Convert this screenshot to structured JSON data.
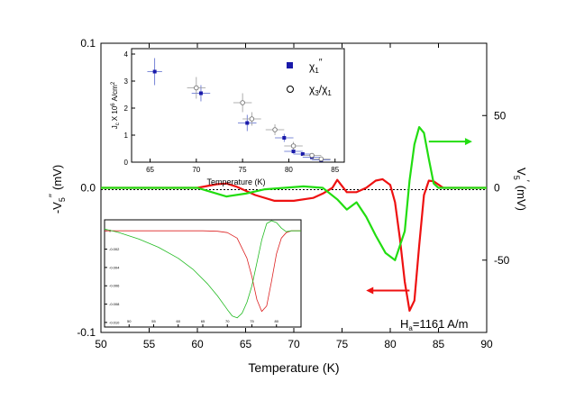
{
  "chart_data": [
    {
      "type": "line",
      "xlabel": "Temperature (K)",
      "ylabel_left": "-V",
      "ylabel_left_sub": "5",
      "ylabel_left_sup": "′′",
      "ylabel_left_unit": "(mV)",
      "ylabel_right": "V",
      "ylabel_right_sub": "5",
      "ylabel_right_sup": "′",
      "ylabel_right_unit": "(mV)",
      "xlim": [
        50,
        90
      ],
      "ylim_left": [
        -0.1,
        0.1
      ],
      "ylim_right": [
        -100,
        100
      ],
      "x_ticks": [
        50,
        55,
        60,
        65,
        70,
        75,
        80,
        85,
        90
      ],
      "y_ticks_left": [
        -0.1,
        0.0,
        0.1
      ],
      "y_ticks_left_labels": [
        "-0.1",
        "0.0",
        "0.1"
      ],
      "y_ticks_right": [
        -50,
        0,
        50
      ],
      "y_ticks_right_labels": [
        "-50",
        "0",
        "50"
      ],
      "annotation": "H",
      "annotation_sub": "a",
      "annotation_rest": "=1161 A/m",
      "series": [
        {
          "name": "-V5'' (left axis)",
          "color": "#ee1111",
          "axis": "left",
          "x": [
            50,
            58,
            60,
            62,
            63,
            64,
            66,
            68,
            70,
            72,
            73,
            74,
            74.5,
            75.5,
            76.5,
            77.5,
            78.5,
            79.2,
            80,
            80.5,
            81,
            81.5,
            82,
            82.5,
            83,
            83.5,
            84,
            84.5,
            85.5,
            87,
            90
          ],
          "y": [
            0.0,
            0.0,
            0.0,
            0.0025,
            0.003,
            0.001,
            -0.005,
            -0.009,
            -0.009,
            -0.007,
            -0.004,
            0.0,
            0.0055,
            -0.003,
            -0.003,
            0.0,
            0.005,
            0.006,
            0.002,
            -0.01,
            -0.035,
            -0.065,
            -0.085,
            -0.078,
            -0.04,
            -0.005,
            0.005,
            0.0045,
            0.0,
            0.0,
            0.0
          ]
        },
        {
          "name": "V5' (right axis)",
          "color": "#22dd11",
          "axis": "right",
          "x": [
            50,
            58,
            60,
            61,
            63,
            65,
            67,
            69,
            71,
            73,
            74.5,
            75.5,
            76.5,
            77.5,
            78.5,
            79.5,
            80.5,
            81.5,
            82,
            82.5,
            83,
            83.5,
            84,
            84.5,
            85,
            86,
            87,
            90
          ],
          "y": [
            0,
            0,
            0,
            -2,
            -6,
            -4,
            -1,
            0,
            1,
            0,
            -8,
            -15,
            -10,
            -20,
            -33,
            -45,
            -50,
            -30,
            5,
            30,
            42,
            38,
            20,
            3,
            0,
            0,
            0,
            0
          ]
        }
      ],
      "arrows": [
        {
          "series": "V5'",
          "direction": "right",
          "from_x": 84,
          "to_x": 88.5,
          "y_right": 32
        },
        {
          "series": "-V5''",
          "direction": "left",
          "from_x": 82,
          "to_x": 77.5,
          "y_left": -0.071
        }
      ]
    },
    {
      "type": "scatter",
      "position": "top-left inset",
      "xlabel": "Temperature (K)",
      "ylabel": "J",
      "ylabel_sub": "c",
      "ylabel_rest": "X 10",
      "ylabel_sup": "6",
      "ylabel_unit": "A/cm",
      "ylabel_unit_sup": "2",
      "xlim": [
        63,
        86
      ],
      "ylim": [
        0,
        4.2
      ],
      "x_ticks": [
        65,
        70,
        75,
        80,
        85
      ],
      "y_ticks": [
        0,
        1,
        2,
        3,
        4
      ],
      "series": [
        {
          "name": "χ1′′",
          "legend_symbol": "χ",
          "legend_sub": "1",
          "legend_sup": "′′",
          "marker": "filled-square",
          "color": "#1a1aaa",
          "x": [
            65.5,
            70.5,
            75.5,
            79.5,
            80.5,
            81.5,
            82.5,
            83.5
          ],
          "y": [
            3.35,
            2.55,
            1.45,
            0.9,
            0.4,
            0.3,
            0.18,
            0.08
          ],
          "xerr": [
            0.8,
            1,
            1,
            1,
            1,
            1,
            1,
            1
          ],
          "yerr": [
            0.5,
            0.3,
            0.3,
            0.15,
            0.08,
            0.05,
            0.04,
            0.03
          ]
        },
        {
          "name": "χ3/χ1",
          "legend_symbol": "χ",
          "legend_sub": "3",
          "legend_sep": "/χ",
          "legend_sub2": "1",
          "marker": "open-circle",
          "color": "#777777",
          "x": [
            70,
            75,
            76,
            78.5,
            80.5,
            82.5,
            83.5
          ],
          "y": [
            2.75,
            2.2,
            1.6,
            1.2,
            0.6,
            0.25,
            0.12
          ],
          "xerr": [
            1,
            1,
            1,
            1,
            1,
            1,
            1
          ],
          "yerr": [
            0.4,
            0.35,
            0.25,
            0.2,
            0.15,
            0.08,
            0.05
          ]
        }
      ]
    },
    {
      "type": "line",
      "position": "bottom-left inset",
      "xlim": [
        45,
        85
      ],
      "ylim": [
        -0.0105,
        0.0012
      ],
      "x_ticks": [
        50,
        55,
        60,
        65,
        70,
        75,
        80
      ],
      "y_ticks": [
        0,
        -0.002,
        -0.004,
        -0.006,
        -0.008,
        -0.01
      ],
      "y_ticks_labels": [
        "0",
        "-0.002",
        "-0.004",
        "-0.006",
        "-0.008",
        "-0.010"
      ],
      "series": [
        {
          "name": "red",
          "color": "#dd2222",
          "x": [
            45,
            60,
            65,
            68,
            70,
            72,
            74,
            75,
            76,
            77,
            78,
            79,
            80,
            81,
            82,
            83,
            85
          ],
          "y": [
            0,
            0,
            0,
            -5e-05,
            -0.0002,
            -0.0008,
            -0.003,
            -0.005,
            -0.0075,
            -0.0088,
            -0.0082,
            -0.0055,
            -0.0025,
            -0.0008,
            -0.0002,
            0,
            0
          ]
        },
        {
          "name": "green",
          "color": "#22bb22",
          "x": [
            45,
            48,
            52,
            56,
            60,
            63,
            66,
            68,
            70,
            71,
            72,
            73,
            74,
            75,
            76,
            77,
            78,
            79,
            80,
            81,
            82,
            83,
            85
          ],
          "y": [
            0.0002,
            -0.0002,
            -0.0009,
            -0.0018,
            -0.003,
            -0.0042,
            -0.0058,
            -0.0071,
            -0.0086,
            -0.0093,
            -0.0095,
            -0.009,
            -0.0078,
            -0.006,
            -0.0035,
            -0.001,
            0.0008,
            0.0011,
            0.0009,
            0.0003,
            -0.0001,
            0,
            0
          ]
        }
      ]
    }
  ]
}
